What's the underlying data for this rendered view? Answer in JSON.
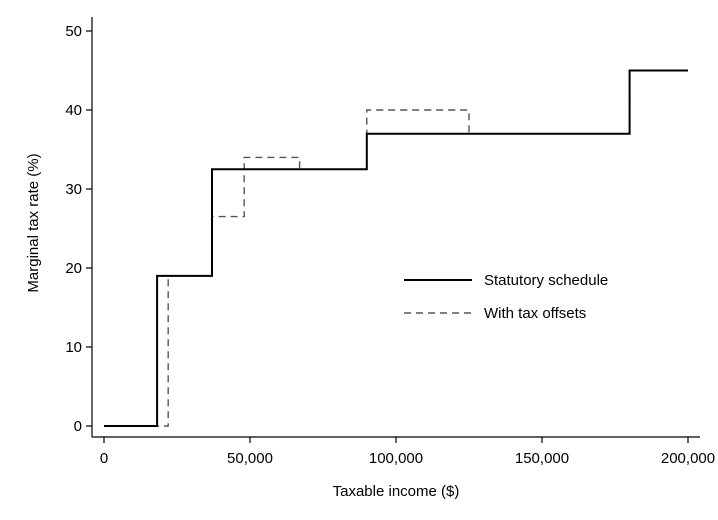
{
  "chart_data": {
    "type": "line",
    "xlabel": "Taxable income ($)",
    "ylabel": "Marginal tax rate (%)",
    "xlim": [
      0,
      200000
    ],
    "ylim": [
      0,
      50
    ],
    "x_ticks": [
      0,
      50000,
      100000,
      150000,
      200000
    ],
    "x_tick_labels": [
      "0",
      "50,000",
      "100,000",
      "150,000",
      "200,000"
    ],
    "y_ticks": [
      0,
      10,
      20,
      30,
      40,
      50
    ],
    "y_tick_labels": [
      "0",
      "10",
      "20",
      "30",
      "40",
      "50"
    ],
    "grid": false,
    "legend_position": "right-center",
    "series": [
      {
        "name": "Statutory schedule",
        "style": "solid",
        "color": "#000000",
        "points": [
          [
            0,
            0
          ],
          [
            18200,
            0
          ],
          [
            18200,
            19
          ],
          [
            37000,
            19
          ],
          [
            37000,
            32.5
          ],
          [
            90000,
            32.5
          ],
          [
            90000,
            37
          ],
          [
            180000,
            37
          ],
          [
            180000,
            45
          ],
          [
            200000,
            45
          ]
        ]
      },
      {
        "name": "With tax offsets",
        "style": "dashed",
        "color": "#555555",
        "points": [
          [
            0,
            0
          ],
          [
            22000,
            0
          ],
          [
            22000,
            19
          ],
          [
            37000,
            19
          ],
          [
            37000,
            26.5
          ],
          [
            48000,
            26.5
          ],
          [
            48000,
            34
          ],
          [
            67000,
            34
          ],
          [
            67000,
            32.5
          ],
          [
            90000,
            32.5
          ],
          [
            90000,
            40
          ],
          [
            125000,
            40
          ],
          [
            125000,
            37
          ],
          [
            180000,
            37
          ],
          [
            180000,
            45
          ],
          [
            200000,
            45
          ]
        ]
      }
    ]
  }
}
